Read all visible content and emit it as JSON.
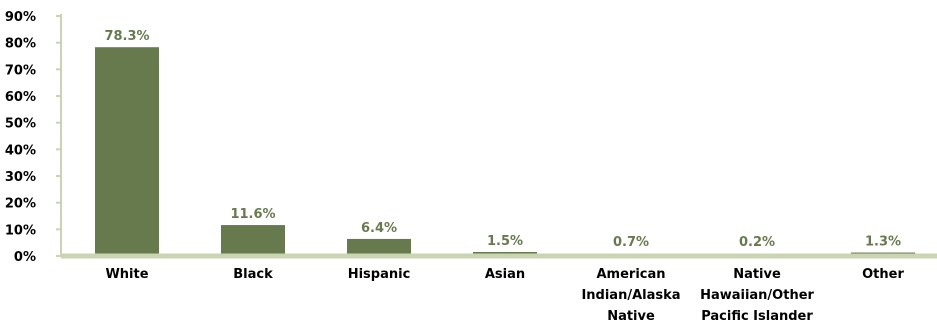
{
  "chart_data": {
    "type": "bar",
    "categories": [
      [
        "White"
      ],
      [
        "Black"
      ],
      [
        "Hispanic"
      ],
      [
        "Asian"
      ],
      [
        "American",
        "Indian/Alaska",
        "Native"
      ],
      [
        "Native",
        "Hawaiian/Other",
        "Pacific Islander"
      ],
      [
        "Other"
      ]
    ],
    "values": [
      78.3,
      11.6,
      6.4,
      1.5,
      0.7,
      0.2,
      1.3
    ],
    "data_labels": [
      "78.3%",
      "11.6%",
      "6.4%",
      "1.5%",
      "0.7%",
      "0.2%",
      "1.3%"
    ],
    "y_ticks": [
      "0%",
      "10%",
      "20%",
      "30%",
      "40%",
      "50%",
      "60%",
      "70%",
      "80%",
      "90%"
    ],
    "ylim": [
      0,
      90
    ],
    "grid": false,
    "legend": "none",
    "colors": {
      "bar": "#677a4e",
      "axis": "#c9d4b2",
      "data_label": "#677a4e"
    }
  }
}
